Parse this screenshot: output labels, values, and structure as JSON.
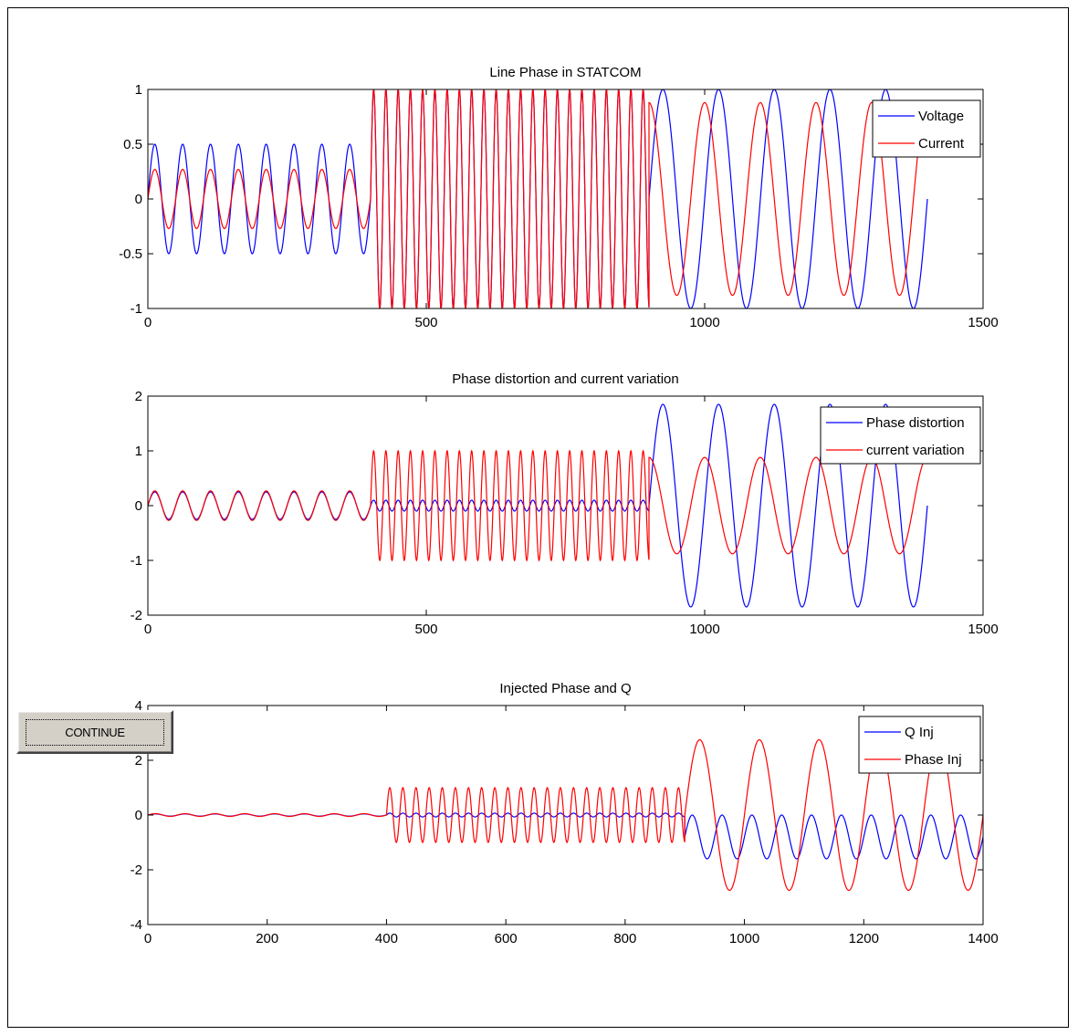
{
  "continue_label": "CONTINUE",
  "chart_data": [
    {
      "type": "line",
      "title": "Line Phase in STATCOM",
      "xlim": [
        0,
        1500
      ],
      "ylim": [
        -1,
        1
      ],
      "xticks": [
        "0",
        "500",
        "1000",
        "1500"
      ],
      "yticks": [
        "-1",
        "-0.5",
        "0",
        "0.5",
        "1"
      ],
      "legend_position": "top-right",
      "series": [
        {
          "name": "Voltage",
          "color": "#0000ff",
          "segments": [
            {
              "x_start": 0,
              "x_end": 400,
              "amplitude": 0.5,
              "period": 50,
              "phase": 0
            },
            {
              "x_start": 400,
              "x_end": 900,
              "amplitude": 1.0,
              "period": 22,
              "phase": 0
            },
            {
              "x_start": 900,
              "x_end": 1400,
              "amplitude": 1.0,
              "period": 100,
              "phase": 0
            }
          ]
        },
        {
          "name": "Current",
          "color": "#ff0000",
          "segments": [
            {
              "x_start": 0,
              "x_end": 400,
              "amplitude": 0.27,
              "period": 50,
              "phase": 0
            },
            {
              "x_start": 400,
              "x_end": 900,
              "amplitude": 1.0,
              "period": 22,
              "phase": 0
            },
            {
              "x_start": 900,
              "x_end": 1400,
              "amplitude": 0.88,
              "period": 100,
              "phase": 25
            }
          ]
        }
      ]
    },
    {
      "type": "line",
      "title": "Phase distortion and current variation",
      "xlim": [
        0,
        1500
      ],
      "ylim": [
        -2,
        2
      ],
      "xticks": [
        "0",
        "500",
        "1000",
        "1500"
      ],
      "yticks": [
        "-2",
        "-1",
        "0",
        "1",
        "2"
      ],
      "legend_position": "top-right",
      "series": [
        {
          "name": "Phase distortion",
          "color": "#0000ff",
          "segments": [
            {
              "x_start": 0,
              "x_end": 400,
              "amplitude": 0.25,
              "period": 50,
              "phase": 0
            },
            {
              "x_start": 400,
              "x_end": 900,
              "amplitude": 0.1,
              "period": 22,
              "phase": 0
            },
            {
              "x_start": 900,
              "x_end": 1400,
              "amplitude": 1.85,
              "period": 100,
              "phase": 0
            }
          ]
        },
        {
          "name": "current variation",
          "color": "#ff0000",
          "segments": [
            {
              "x_start": 0,
              "x_end": 400,
              "amplitude": 0.27,
              "period": 50,
              "phase": 0
            },
            {
              "x_start": 400,
              "x_end": 900,
              "amplitude": 1.0,
              "period": 22,
              "phase": 0
            },
            {
              "x_start": 900,
              "x_end": 1400,
              "amplitude": 0.88,
              "period": 100,
              "phase": 25
            }
          ]
        }
      ]
    },
    {
      "type": "line",
      "title": "Injected Phase and Q",
      "xlim": [
        0,
        1400
      ],
      "ylim": [
        -4,
        4
      ],
      "xticks": [
        "0",
        "200",
        "400",
        "600",
        "800",
        "1000",
        "1200",
        "1400"
      ],
      "yticks": [
        "-4",
        "-2",
        "0",
        "2",
        "4"
      ],
      "legend_position": "top-right",
      "series": [
        {
          "name": "Q Inj",
          "color": "#0000ff",
          "segments": [
            {
              "x_start": 0,
              "x_end": 400,
              "amplitude": 0.04,
              "period": 50,
              "phase": 0,
              "offset": 0
            },
            {
              "x_start": 400,
              "x_end": 900,
              "amplitude": 0.07,
              "period": 22,
              "phase": 0,
              "offset": 0
            },
            {
              "x_start": 900,
              "x_end": 1400,
              "amplitude": 0.8,
              "period": 50,
              "phase": 0,
              "offset": -0.8
            }
          ]
        },
        {
          "name": "Phase Inj",
          "color": "#ff0000",
          "segments": [
            {
              "x_start": 0,
              "x_end": 400,
              "amplitude": 0.05,
              "period": 50,
              "phase": 0,
              "offset": 0
            },
            {
              "x_start": 400,
              "x_end": 900,
              "amplitude": 1.0,
              "period": 22,
              "phase": 0,
              "offset": 0
            },
            {
              "x_start": 900,
              "x_end": 1400,
              "amplitude": 2.75,
              "period": 100,
              "phase": 0,
              "offset": 0
            }
          ]
        }
      ]
    }
  ]
}
